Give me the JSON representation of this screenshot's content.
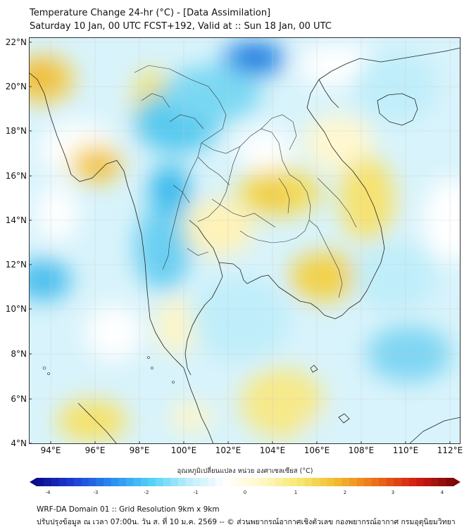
{
  "header": {
    "title_line1": "Temperature Change 24-hr (°C) - [Data Assimilation]",
    "title_line2": "Saturday 10 Jan, 00 UTC FCST+192, Valid at :: Sun 18 Jan, 00 UTC"
  },
  "map": {
    "lon_range": [
      93,
      112.5
    ],
    "lat_range": [
      4,
      22.3
    ],
    "x_ticks": [
      "94°E",
      "96°E",
      "98°E",
      "100°E",
      "102°E",
      "104°E",
      "106°E",
      "108°E",
      "110°E",
      "112°E"
    ],
    "y_ticks": [
      "22°N",
      "20°N",
      "18°N",
      "16°N",
      "14°N",
      "12°N",
      "10°N",
      "8°N",
      "6°N",
      "4°N"
    ],
    "colormap": [
      "#0b0b8c",
      "#1f3fd6",
      "#2b8ef0",
      "#4fd1f5",
      "#bdeefa",
      "#ffffff",
      "#fff7c0",
      "#f6e66a",
      "#f2b62a",
      "#ec6a1a",
      "#d21e12",
      "#7a0808"
    ]
  },
  "colorbar": {
    "label": "อุณหภูมิเปลี่ยนแปลง หน่วย องศาเซลเซียส (°C)",
    "ticks": [
      "-4",
      "-3",
      "-2",
      "-1",
      "0",
      "1",
      "2",
      "3",
      "4"
    ]
  },
  "footer": {
    "line1": "WRF-DA Domain 01 :: Grid Resolution 9km x 9km",
    "line2": "ปรับปรุงข้อมูล ณ เวลา 07:00น. วัน ส. ที่ 10 ม.ค. 2569 -- © ส่วนพยากรณ์อากาศเชิงตัวเลข กองพยากรณ์อากาศ กรมอุตุนิยมวิทยา"
  }
}
